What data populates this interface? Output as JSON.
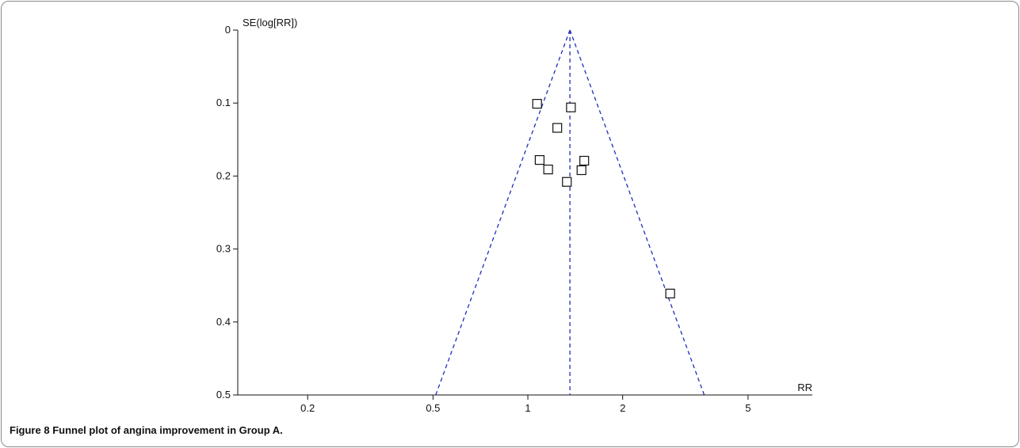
{
  "chart_data": {
    "type": "scatter",
    "ylabel": "SE(log[RR])",
    "xlabel": "RR",
    "x_scale": "log",
    "y_inverted": true,
    "xlim": [
      0.12,
      8.0
    ],
    "ylim": [
      0,
      0.5
    ],
    "x_ticks": [
      0.2,
      0.5,
      1,
      2,
      5
    ],
    "x_tick_labels": [
      "0.2",
      "0.5",
      "1",
      "2",
      "5"
    ],
    "y_ticks": [
      0,
      0.1,
      0.2,
      0.3,
      0.4,
      0.5
    ],
    "y_tick_labels": [
      "0",
      "0.1",
      "0.2",
      "0.3",
      "0.4",
      "0.5"
    ],
    "pooled_rr": 1.36,
    "funnel_limits_at_se_0_5": [
      0.51,
      3.63
    ],
    "points": [
      {
        "x": 1.07,
        "y": 0.101
      },
      {
        "x": 1.37,
        "y": 0.106
      },
      {
        "x": 1.24,
        "y": 0.134
      },
      {
        "x": 1.09,
        "y": 0.178
      },
      {
        "x": 1.16,
        "y": 0.191
      },
      {
        "x": 1.51,
        "y": 0.179
      },
      {
        "x": 1.48,
        "y": 0.192
      },
      {
        "x": 1.33,
        "y": 0.208
      },
      {
        "x": 2.83,
        "y": 0.361
      }
    ],
    "grid": false,
    "legend": "none",
    "colors": {
      "funnel": "#1f2fb5",
      "markers": "#111111",
      "axes": "#111111"
    }
  },
  "caption": {
    "label": "Figure 8",
    "text": " Funnel plot of angina improvement in Group A."
  }
}
